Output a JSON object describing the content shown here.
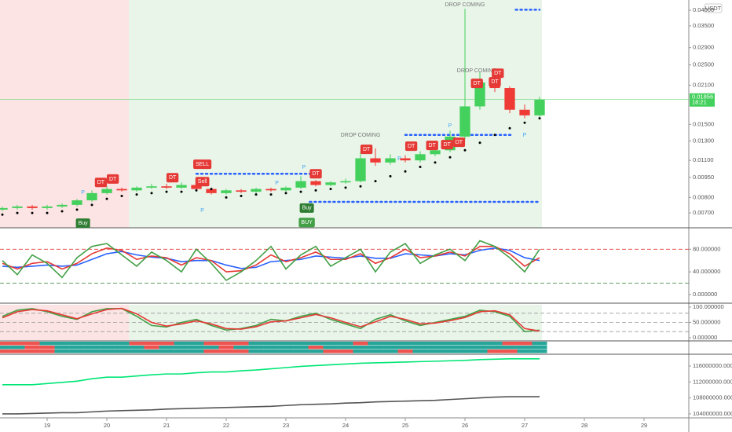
{
  "chart_data": [
    {
      "type": "candlestick",
      "currency": "USDT",
      "countdown": "18:21",
      "log_scale": true,
      "x": [
        18.25,
        18.5,
        18.75,
        19,
        19.25,
        19.5,
        19.75,
        20,
        20.25,
        20.5,
        20.75,
        21,
        21.25,
        21.5,
        21.75,
        22,
        22.25,
        22.5,
        22.75,
        23,
        23.25,
        23.5,
        23.75,
        24,
        24.25,
        24.5,
        24.75,
        25,
        25.25,
        25.5,
        25.75,
        26,
        26.25,
        26.5,
        26.75,
        27,
        27.25
      ],
      "open": [
        0.0072,
        0.0073,
        0.0074,
        0.0073,
        0.0074,
        0.0075,
        0.0078,
        0.0083,
        0.0086,
        0.0085,
        0.0087,
        0.0088,
        0.0087,
        0.0089,
        0.0086,
        0.0083,
        0.0085,
        0.0084,
        0.0086,
        0.0085,
        0.0087,
        0.0092,
        0.0089,
        0.0091,
        0.0092,
        0.0112,
        0.0108,
        0.0112,
        0.011,
        0.0116,
        0.012,
        0.0135,
        0.0175,
        0.0215,
        0.0205,
        0.017,
        0.0162
      ],
      "high": [
        0.0074,
        0.0075,
        0.0075,
        0.0075,
        0.0076,
        0.0079,
        0.0085,
        0.0088,
        0.0087,
        0.0088,
        0.009,
        0.009,
        0.0091,
        0.0091,
        0.0087,
        0.0086,
        0.0086,
        0.0087,
        0.0087,
        0.0088,
        0.0096,
        0.0093,
        0.0092,
        0.0094,
        0.0118,
        0.0122,
        0.0116,
        0.0115,
        0.0119,
        0.0124,
        0.0142,
        0.0405,
        0.0235,
        0.0225,
        0.0208,
        0.0178,
        0.019
      ],
      "low": [
        0.0071,
        0.0072,
        0.0072,
        0.0072,
        0.0073,
        0.0074,
        0.0077,
        0.0082,
        0.0084,
        0.0084,
        0.0086,
        0.0086,
        0.0086,
        0.0085,
        0.0082,
        0.0082,
        0.0083,
        0.0083,
        0.0084,
        0.0084,
        0.0086,
        0.0088,
        0.0088,
        0.009,
        0.0091,
        0.0105,
        0.0106,
        0.0108,
        0.0108,
        0.0114,
        0.0118,
        0.0132,
        0.017,
        0.0198,
        0.0165,
        0.0158,
        0.016
      ],
      "close": [
        0.0073,
        0.0074,
        0.0073,
        0.0074,
        0.0075,
        0.0078,
        0.0083,
        0.0086,
        0.0085,
        0.0087,
        0.0088,
        0.0087,
        0.0089,
        0.0086,
        0.0083,
        0.0085,
        0.0084,
        0.0086,
        0.0085,
        0.0087,
        0.0092,
        0.0089,
        0.0091,
        0.0092,
        0.0112,
        0.0108,
        0.0112,
        0.011,
        0.0116,
        0.012,
        0.0135,
        0.0175,
        0.0215,
        0.0205,
        0.017,
        0.0162,
        0.01856
      ],
      "up_color": "#43d05c",
      "down_color": "#ef3b36",
      "xlim": [
        18.21,
        29.75
      ],
      "xticks": [
        19,
        20,
        21,
        22,
        23,
        24,
        25,
        26,
        27,
        28,
        29
      ],
      "ylim": [
        0.00616,
        0.0437
      ],
      "yticks": [
        {
          "value": 0.04,
          "label": "0.04000"
        },
        {
          "value": 0.035,
          "label": "0.03500"
        },
        {
          "value": 0.029,
          "label": "0.02900"
        },
        {
          "value": 0.025,
          "label": "0.02500"
        },
        {
          "value": 0.021,
          "label": "0.02100"
        },
        {
          "value": 0.015,
          "label": "0.01500"
        },
        {
          "value": 0.013,
          "label": "0.01300"
        },
        {
          "value": 0.011,
          "label": "0.01100"
        },
        {
          "value": 0.0095,
          "label": "0.00950"
        },
        {
          "value": 0.008,
          "label": "0.00800"
        },
        {
          "value": 0.007,
          "label": "0.00700"
        }
      ],
      "overlays": [
        {
          "color": "#000000",
          "values": [
            0.0069,
            0.007,
            0.007,
            0.007,
            0.0071,
            0.0072,
            0.0075,
            0.0079,
            0.0081,
            0.0082,
            0.0083,
            0.0084,
            0.0084,
            0.0085,
            0.0086,
            0.008,
            0.0081,
            0.0082,
            0.0082,
            0.0083,
            0.0084,
            0.0085,
            0.0086,
            0.0087,
            0.0088,
            0.0092,
            0.0096,
            0.01,
            0.0104,
            0.0108,
            0.0113,
            0.012,
            0.0128,
            0.0137,
            0.0145,
            0.0152,
            0.0158
          ]
        }
      ],
      "levels": [
        {
          "value": 0.0402,
          "from": 26.85,
          "to": 27.25,
          "color": "#2962ff"
        },
        {
          "value": 0.0077,
          "from": 23.4,
          "to": 27.25,
          "color": "#2962ff"
        },
        {
          "value": 0.0098,
          "from": 21.5,
          "to": 23.4,
          "color": "#2962ff"
        },
        {
          "value": 0.0137,
          "from": 25.0,
          "to": 26.8,
          "color": "#2962ff"
        }
      ],
      "signals": [
        {
          "label": "Buy",
          "x": 19.6,
          "y": 0.00641,
          "color": "#2e7d32",
          "box": true
        },
        {
          "label": "P",
          "x": 19.6,
          "y": 0.00834,
          "color": "#42a5f5",
          "box": false
        },
        {
          "label": "DT",
          "x": 19.9,
          "y": 0.0091,
          "color": "#e53935",
          "box": true
        },
        {
          "label": "DT",
          "x": 20.1,
          "y": 0.00937,
          "color": "#e53935",
          "box": true
        },
        {
          "label": "DT",
          "x": 21.1,
          "y": 0.00948,
          "color": "#e53935",
          "box": true
        },
        {
          "label": "SELL",
          "x": 21.6,
          "y": 0.01064,
          "color": "#e53935",
          "box": true
        },
        {
          "label": "Sell",
          "x": 21.6,
          "y": 0.00916,
          "color": "#e53935",
          "box": true
        },
        {
          "label": "P",
          "x": 21.6,
          "y": 0.00714,
          "color": "#42a5f5",
          "box": false
        },
        {
          "label": "P",
          "x": 22.85,
          "y": 0.00905,
          "color": "#42a5f5",
          "box": false
        },
        {
          "label": "P",
          "x": 23.3,
          "y": 0.01036,
          "color": "#42a5f5",
          "box": false
        },
        {
          "label": "DT",
          "x": 23.5,
          "y": 0.0098,
          "color": "#e53935",
          "box": true
        },
        {
          "label": "Buy",
          "x": 23.35,
          "y": 0.0073,
          "color": "#2e7d32",
          "box": true
        },
        {
          "label": "BUY",
          "x": 23.35,
          "y": 0.00645,
          "color": "#43a047",
          "box": true
        },
        {
          "label": "DROP COMING",
          "x": 24.25,
          "y": 0.01367,
          "color": "#777777",
          "box": false
        },
        {
          "label": "DT",
          "x": 24.35,
          "y": 0.0121,
          "color": "#e53935",
          "box": true
        },
        {
          "label": "P",
          "x": 24.9,
          "y": 0.01116,
          "color": "#42a5f5",
          "box": false
        },
        {
          "label": "DT",
          "x": 25.1,
          "y": 0.01243,
          "color": "#e53935",
          "box": true
        },
        {
          "label": "DT",
          "x": 25.45,
          "y": 0.01251,
          "color": "#e53935",
          "box": true
        },
        {
          "label": "DT",
          "x": 25.7,
          "y": 0.0126,
          "color": "#e53935",
          "box": true
        },
        {
          "label": "DT",
          "x": 25.9,
          "y": 0.01285,
          "color": "#e53935",
          "box": true
        },
        {
          "label": "P",
          "x": 25.75,
          "y": 0.01482,
          "color": "#42a5f5",
          "box": false
        },
        {
          "label": "DROP COMING",
          "x": 26.0,
          "y": 0.04306,
          "color": "#777777",
          "box": false
        },
        {
          "label": "DROP COMING",
          "x": 26.2,
          "y": 0.02378,
          "color": "#777777",
          "box": false
        },
        {
          "label": "DT",
          "x": 26.2,
          "y": 0.02134,
          "color": "#e53935",
          "box": true
        },
        {
          "label": "DT",
          "x": 26.5,
          "y": 0.02162,
          "color": "#e53935",
          "box": true
        },
        {
          "label": "DT",
          "x": 26.55,
          "y": 0.02328,
          "color": "#e53935",
          "box": true
        },
        {
          "label": "P",
          "x": 27.0,
          "y": 0.01367,
          "color": "#42a5f5",
          "box": false
        }
      ]
    },
    {
      "type": "line",
      "ylim": [
        -15.4,
        117.9
      ],
      "yticks": [
        {
          "value": 80,
          "label": "80.000000"
        },
        {
          "value": 40,
          "label": "40.000000"
        },
        {
          "value": 0,
          "label": "0.000000"
        }
      ],
      "hlines": [
        {
          "value": 80,
          "color": "#e53935"
        },
        {
          "value": 20,
          "color": "#2e7d32"
        }
      ],
      "series": [
        {
          "color": "#2962ff",
          "values": [
            50,
            48,
            50,
            52,
            50,
            52,
            62,
            72,
            76,
            70,
            66,
            64,
            58,
            60,
            60,
            52,
            46,
            48,
            58,
            60,
            62,
            68,
            66,
            64,
            68,
            64,
            64,
            72,
            70,
            68,
            72,
            70,
            78,
            82,
            78,
            65,
            60
          ]
        },
        {
          "color": "#e53935",
          "values": [
            55,
            45,
            55,
            58,
            45,
            55,
            72,
            82,
            78,
            62,
            68,
            65,
            52,
            65,
            60,
            40,
            42,
            52,
            70,
            58,
            65,
            75,
            62,
            62,
            72,
            55,
            65,
            80,
            65,
            68,
            75,
            68,
            85,
            85,
            72,
            50,
            65
          ]
        },
        {
          "color": "#43a047",
          "values": [
            60,
            35,
            70,
            55,
            30,
            65,
            85,
            90,
            70,
            50,
            75,
            60,
            40,
            80,
            55,
            25,
            40,
            60,
            85,
            45,
            70,
            85,
            50,
            65,
            80,
            40,
            75,
            90,
            55,
            70,
            80,
            60,
            95,
            85,
            65,
            40,
            80
          ]
        }
      ]
    },
    {
      "type": "line",
      "ylim": [
        -7.7,
        107.7
      ],
      "yticks": [
        {
          "value": 100,
          "label": "100.000000"
        },
        {
          "value": 50,
          "label": "50.000000"
        },
        {
          "value": 0,
          "label": "0.000000"
        }
      ],
      "hlines": [
        {
          "value": 80,
          "color": "#999999"
        },
        {
          "value": 50,
          "color": "#999999"
        },
        {
          "value": 20,
          "color": "#999999"
        }
      ],
      "series": [
        {
          "color": "#43a047",
          "values": [
            70,
            90,
            95,
            85,
            70,
            60,
            85,
            95,
            95,
            70,
            40,
            35,
            50,
            60,
            40,
            25,
            30,
            40,
            60,
            55,
            70,
            80,
            60,
            45,
            30,
            60,
            75,
            55,
            40,
            50,
            60,
            70,
            90,
            85,
            70,
            20,
            25
          ]
        },
        {
          "color": "#e53935",
          "values": [
            65,
            85,
            92,
            88,
            75,
            62,
            78,
            92,
            96,
            78,
            50,
            38,
            45,
            55,
            45,
            30,
            28,
            36,
            52,
            55,
            65,
            76,
            65,
            50,
            36,
            52,
            70,
            60,
            45,
            48,
            56,
            66,
            85,
            88,
            75,
            30,
            22
          ]
        }
      ]
    },
    {
      "type": "heatmap",
      "colors": [
        "#ef5350",
        "#26a69a"
      ],
      "rows": [
        [
          0,
          0,
          0,
          1,
          1,
          1,
          1,
          1,
          1,
          0,
          0,
          0,
          1,
          1,
          0,
          0,
          0,
          1,
          1,
          1,
          1,
          1,
          1,
          1,
          0,
          1,
          1,
          1,
          1,
          1,
          1,
          1,
          1,
          1,
          0,
          0,
          1
        ],
        [
          1,
          1,
          0,
          0,
          1,
          1,
          1,
          1,
          1,
          1,
          0,
          1,
          1,
          1,
          1,
          0,
          1,
          1,
          1,
          1,
          1,
          0,
          1,
          1,
          1,
          1,
          1,
          1,
          1,
          1,
          1,
          1,
          1,
          1,
          1,
          1,
          1
        ],
        [
          0,
          0,
          0,
          0,
          1,
          1,
          1,
          1,
          1,
          1,
          1,
          1,
          1,
          1,
          0,
          0,
          0,
          1,
          1,
          1,
          1,
          1,
          0,
          0,
          1,
          1,
          1,
          0,
          1,
          1,
          1,
          1,
          1,
          0,
          0,
          1,
          1
        ]
      ]
    },
    {
      "type": "line",
      "ylim": [
        103000000,
        118750000
      ],
      "yticks": [
        {
          "value": 116000000,
          "label": "116000000.000000"
        },
        {
          "value": 112000000,
          "label": "112000000.000000"
        },
        {
          "value": 108000000,
          "label": "108000000.000000"
        },
        {
          "value": 104000000,
          "label": "104000000.000000"
        }
      ],
      "series": [
        {
          "color": "#00e676",
          "values": [
            111300000,
            111300000,
            111300000,
            111600000,
            111900000,
            112200000,
            112800000,
            113200000,
            113200000,
            113500000,
            113800000,
            114000000,
            114000000,
            114300000,
            114500000,
            114500000,
            114800000,
            115000000,
            115300000,
            115600000,
            115900000,
            116100000,
            116300000,
            116500000,
            116700000,
            116800000,
            116900000,
            117000000,
            117100000,
            117200000,
            117300000,
            117400000,
            117600000,
            117700000,
            117800000,
            117800000,
            117800000
          ]
        },
        {
          "color": "#555555",
          "values": [
            104000000,
            104000000,
            104100000,
            104200000,
            104300000,
            104300000,
            104500000,
            104700000,
            104800000,
            104900000,
            105000000,
            105200000,
            105300000,
            105400000,
            105500000,
            105600000,
            105700000,
            105800000,
            105900000,
            106100000,
            106300000,
            106400000,
            106500000,
            106700000,
            106800000,
            107000000,
            107100000,
            107200000,
            107300000,
            107400000,
            107600000,
            107800000,
            108000000,
            108200000,
            108300000,
            108300000,
            108300000
          ]
        }
      ]
    }
  ]
}
